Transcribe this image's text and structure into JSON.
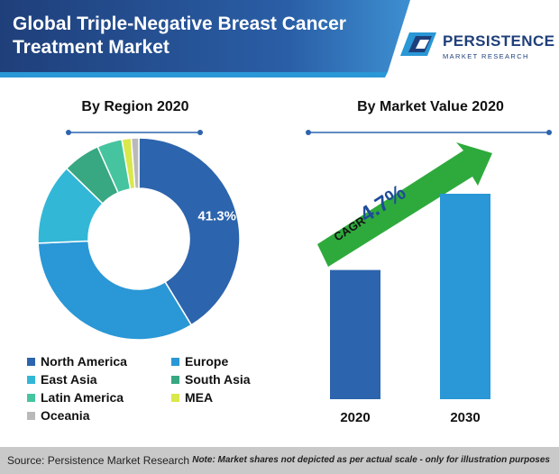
{
  "header": {
    "title": "Global Triple-Negative Breast Cancer Treatment Market",
    "logo_name": "PERSISTENCE",
    "logo_sub": "MARKET RESEARCH"
  },
  "colors": {
    "header_dark": "#1f3f7a",
    "header_light": "#3d8fd1",
    "accent_blue": "#2f6db5",
    "arrow_green": "#2eaa3c"
  },
  "chart_data": [
    {
      "type": "pie",
      "title": "By Region 2020",
      "labels": [
        "North America",
        "Europe",
        "East Asia",
        "South Asia",
        "Latin America",
        "MEA",
        "Oceania"
      ],
      "values": [
        41.3,
        33.0,
        13.0,
        6.0,
        4.0,
        1.5,
        1.2
      ],
      "colors": [
        "#2c64ad",
        "#2a97d6",
        "#33b7d7",
        "#38a882",
        "#45c49f",
        "#d9e84a",
        "#b9b9b9"
      ],
      "data_labels": [
        "41.3%"
      ],
      "donut": true,
      "legend": "bottom"
    },
    {
      "type": "bar",
      "title": "By Market Value 2020",
      "categories": [
        "2020",
        "2030"
      ],
      "values": [
        1.0,
        1.59
      ],
      "colors": [
        "#2c64ad",
        "#2a97d6"
      ],
      "annotation": {
        "prefix": "CAGR",
        "value": "4.7%"
      }
    }
  ],
  "footer": {
    "source": "Source: Persistence Market Research",
    "note": "Note: Market shares not depicted as per actual scale - only for illustration purposes"
  }
}
